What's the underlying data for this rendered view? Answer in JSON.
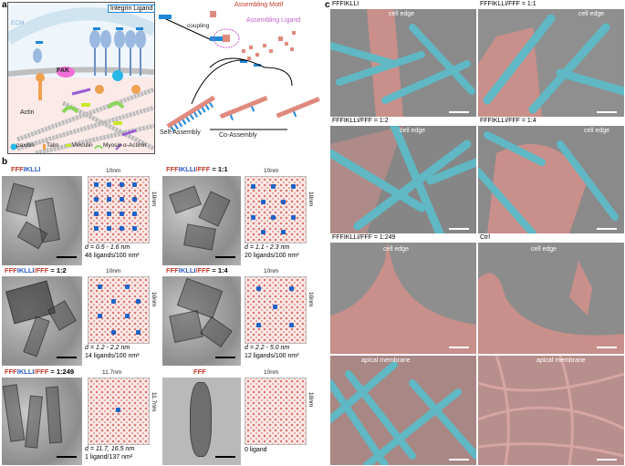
{
  "panel_a": {
    "letter": "a",
    "ecm": "ECM",
    "integrin_ligand": "Integrin Ligand",
    "coupling": "coupling",
    "assembling_motif": "Assembling Motif",
    "assembling_ligand": "Assembling Ligand",
    "fak": "FAK",
    "actin": "Actin",
    "self_assembly": "Self-Assembly",
    "co_assembly": "Co-Assembly",
    "legend": {
      "paxillin": "paxillin",
      "talin": "Talin",
      "vinculin": "Vinculin",
      "myosin": "Myosin",
      "alpha_actinin": "α-Actinin"
    }
  },
  "panel_b": {
    "letter": "b",
    "items": [
      {
        "p1": "FFF",
        "p2": "IKLLI",
        "p3": "",
        "p4": "",
        "dim_x": "10nm",
        "dim_y": "10nm",
        "d": "d = 0.5 - 1.6 nm",
        "ligands": "48 ligands/100 nm²"
      },
      {
        "p1": "FFF",
        "p2": "IKLLI",
        "p3": "/FFF",
        "p4": " = 1:1",
        "dim_x": "10nm",
        "dim_y": "10nm",
        "d": "d = 1.1 - 2.3 nm",
        "ligands": "20 ligands/100 nm²"
      },
      {
        "p1": "FFF",
        "p2": "IKLLI",
        "p3": "/FFF",
        "p4": " = 1:2",
        "dim_x": "10nm",
        "dim_y": "10nm",
        "d": "d = 1.2 - 2.2 nm",
        "ligands": "14 ligands/100 nm²"
      },
      {
        "p1": "FFF",
        "p2": "IKLLI",
        "p3": "/FFF",
        "p4": " = 1:4",
        "dim_x": "10nm",
        "dim_y": "10nm",
        "d": "d = 2.2 - 5.0 nm",
        "ligands": "12 ligands/100 nm²"
      },
      {
        "p1": "FFF",
        "p2": "IKLLI",
        "p3": "/FFF",
        "p4": " = 1:249",
        "dim_x": "11.7nm",
        "dim_y": "11.7nm",
        "d": "d = 11.7, 16.5 nm",
        "ligands": "1 ligand/137 nm²"
      },
      {
        "p1": "FFF",
        "p2": "",
        "p3": "",
        "p4": "",
        "dim_x": "10nm",
        "dim_y": "10nm",
        "d": "",
        "ligands": "0 ligand"
      }
    ]
  },
  "panel_c": {
    "letter": "c",
    "images": [
      {
        "label": "FFFIKLLI",
        "overlay": "cell edge"
      },
      {
        "label": "FFFIKLLI/FFF = 1:1",
        "overlay": "cell edge"
      },
      {
        "label": "FFFIKLLI/FFF = 1:2",
        "overlay": "cell edge"
      },
      {
        "label": "FFFIKLLI/FFF = 1:4",
        "overlay": "cell edge"
      },
      {
        "label": "FFFIKLLI/FFF = 1:249",
        "overlay": "cell edge"
      },
      {
        "label": "Ctrl",
        "overlay": "cell edge"
      },
      {
        "label": "",
        "overlay": "apical membrane"
      },
      {
        "label": "",
        "overlay": "apical membrane"
      }
    ]
  },
  "colors": {
    "fff_red": "#c0392b",
    "ikl_blue": "#2b59c3",
    "fiber_cyan": "#5fb8c4",
    "cell_pink": "#c98f8a",
    "ligand_blue": "#1f63c6",
    "motif_salmon": "#e08a7e"
  }
}
